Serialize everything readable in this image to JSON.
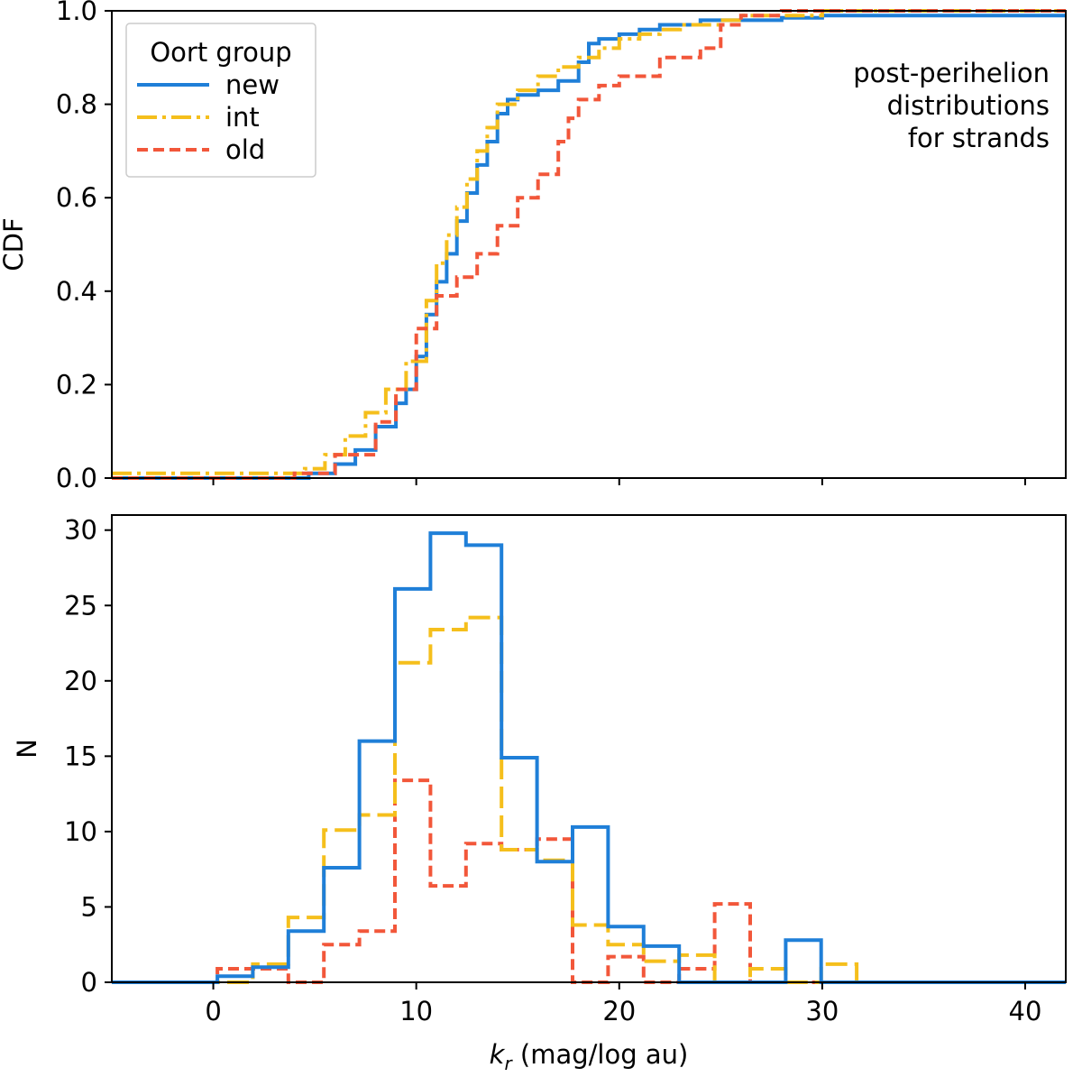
{
  "colors": {
    "new": "#1f7fd8",
    "int": "#f5bf1c",
    "old": "#f2573a"
  },
  "chart_data": [
    {
      "type": "line",
      "panel": "top",
      "title": "",
      "xlabel": "",
      "ylabel": "CDF",
      "xlim": [
        -5,
        42
      ],
      "ylim": [
        0,
        1.0
      ],
      "yticks": [
        0.0,
        0.2,
        0.4,
        0.6,
        0.8,
        1.0
      ],
      "ytick_labels": [
        "0.0",
        "0.2",
        "0.4",
        "0.6",
        "0.8",
        "1.0"
      ],
      "xticks": [
        0,
        10,
        20,
        30,
        40
      ],
      "annotation": [
        "post-perihelion",
        "distributions",
        "for strands"
      ],
      "legend": {
        "title": "Oort group",
        "position": "top-left",
        "entries": [
          "new",
          "int",
          "old"
        ]
      },
      "series": [
        {
          "name": "new",
          "style": "solid",
          "x": [
            -5,
            3,
            4.7,
            6,
            7,
            8,
            9,
            9.5,
            10,
            10.5,
            11,
            11.5,
            12,
            12.5,
            13,
            13.5,
            14,
            14.5,
            15,
            16,
            17,
            18,
            18.5,
            19,
            20,
            21,
            22,
            24,
            28,
            30
          ],
          "y": [
            0,
            0,
            0.01,
            0.03,
            0.06,
            0.11,
            0.16,
            0.19,
            0.26,
            0.35,
            0.42,
            0.48,
            0.55,
            0.61,
            0.67,
            0.72,
            0.78,
            0.81,
            0.82,
            0.83,
            0.85,
            0.89,
            0.93,
            0.94,
            0.95,
            0.96,
            0.97,
            0.98,
            0.985,
            0.99
          ]
        },
        {
          "name": "int",
          "style": "dashdot",
          "x": [
            -5,
            1,
            4.5,
            5.5,
            6.5,
            7.5,
            8.5,
            9.5,
            10.5,
            11,
            11.5,
            12,
            12.5,
            13,
            13.5,
            14,
            15,
            16,
            17,
            18,
            19,
            20,
            21,
            22,
            23,
            25,
            26,
            28,
            30
          ],
          "y": [
            0.01,
            0.01,
            0.02,
            0.05,
            0.09,
            0.14,
            0.19,
            0.25,
            0.38,
            0.46,
            0.52,
            0.58,
            0.64,
            0.7,
            0.75,
            0.8,
            0.83,
            0.86,
            0.88,
            0.9,
            0.92,
            0.94,
            0.95,
            0.96,
            0.97,
            0.98,
            0.99,
            0.99,
            1.0
          ]
        },
        {
          "name": "old",
          "style": "dashed",
          "x": [
            -5,
            1,
            4,
            6,
            8,
            9,
            10,
            11,
            12,
            13,
            14,
            15,
            16,
            17,
            17.5,
            18,
            19,
            20,
            22,
            24,
            25,
            26,
            28,
            30
          ],
          "y": [
            0,
            0,
            0.01,
            0.05,
            0.12,
            0.19,
            0.32,
            0.39,
            0.43,
            0.48,
            0.54,
            0.6,
            0.65,
            0.72,
            0.77,
            0.81,
            0.84,
            0.86,
            0.9,
            0.92,
            0.97,
            0.99,
            1.0,
            1.0
          ]
        }
      ]
    },
    {
      "type": "bar",
      "panel": "bottom",
      "title": "",
      "xlabel": "k_r (mag/log au)",
      "xlabel_main": "k",
      "xlabel_sub": "r",
      "xlabel_rest": " (mag/log au)",
      "ylabel": "N",
      "xlim": [
        -5,
        42
      ],
      "ylim": [
        0,
        31
      ],
      "yticks": [
        0,
        5,
        10,
        15,
        20,
        25,
        30
      ],
      "ytick_labels": [
        "0",
        "5",
        "10",
        "15",
        "20",
        "25",
        "30"
      ],
      "xticks": [
        0,
        10,
        20,
        30,
        40
      ],
      "xtick_labels": [
        "0",
        "10",
        "20",
        "30",
        "40"
      ],
      "bin_edges": [
        0.2,
        1.95,
        3.7,
        5.45,
        7.2,
        8.95,
        10.7,
        12.45,
        14.2,
        15.95,
        17.7,
        19.45,
        21.2,
        22.95,
        24.7,
        26.45,
        28.2,
        29.95,
        31.7
      ],
      "series": [
        {
          "name": "new",
          "style": "solid",
          "values": [
            0.4,
            1.0,
            3.4,
            7.6,
            16.0,
            26.1,
            29.8,
            29.0,
            14.9,
            8.0,
            10.3,
            3.7,
            2.4,
            0.0,
            0.0,
            0.0,
            2.8,
            0.0
          ]
        },
        {
          "name": "int",
          "style": "dashed",
          "values": [
            0.0,
            1.2,
            4.3,
            10.1,
            11.1,
            21.2,
            23.4,
            24.2,
            8.8,
            8.1,
            3.8,
            2.5,
            1.4,
            1.8,
            0.0,
            0.9,
            0.0,
            1.2
          ]
        },
        {
          "name": "old",
          "style": "dashed",
          "values": [
            0.9,
            0.9,
            0.0,
            2.5,
            3.4,
            13.4,
            6.4,
            9.2,
            8.8,
            9.5,
            0.0,
            1.7,
            0.0,
            0.9,
            5.2,
            0.0,
            0.0,
            0.0
          ]
        }
      ]
    }
  ]
}
